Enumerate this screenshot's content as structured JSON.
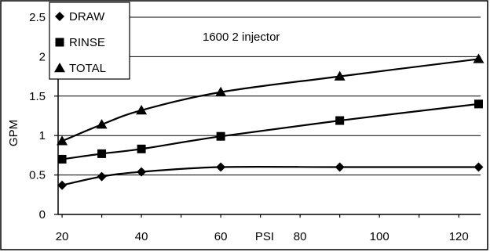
{
  "chart_data": {
    "type": "line",
    "title": "",
    "annotation": "1600 2 injector",
    "xlabel": "PSI",
    "ylabel": "GPM",
    "xlim": [
      20,
      125
    ],
    "ylim": [
      0,
      2.5
    ],
    "x_ticks": [
      "20",
      "40",
      "60",
      "80",
      "100",
      "120"
    ],
    "y_ticks": [
      "0",
      "0.5",
      "1",
      "1.5",
      "2",
      "2.5"
    ],
    "grid": "horizontal",
    "legend_position": "top-left",
    "series": [
      {
        "name": "DRAW",
        "marker": "diamond",
        "color": "#000000",
        "x": [
          20,
          30,
          40,
          60,
          90,
          125
        ],
        "y": [
          0.37,
          0.48,
          0.54,
          0.6,
          0.6,
          0.6
        ]
      },
      {
        "name": "RINSE",
        "marker": "square",
        "color": "#000000",
        "x": [
          20,
          30,
          40,
          60,
          90,
          125
        ],
        "y": [
          0.7,
          0.77,
          0.83,
          0.99,
          1.19,
          1.4
        ]
      },
      {
        "name": "TOTAL",
        "marker": "triangle",
        "color": "#000000",
        "x": [
          20,
          30,
          40,
          60,
          90,
          125
        ],
        "y": [
          0.93,
          1.14,
          1.32,
          1.55,
          1.75,
          1.97
        ]
      }
    ]
  }
}
